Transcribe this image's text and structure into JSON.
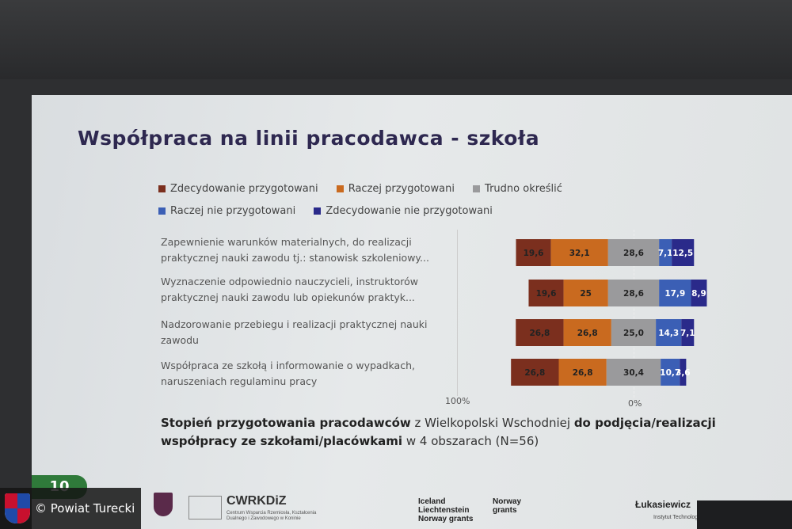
{
  "slide": {
    "title": "Współpraca na linii pracodawca - szkoła",
    "page_number": "10",
    "caption": {
      "part1": "Stopień przygotowania pracodawców",
      "part2": " z Wielkopolski Wschodniej ",
      "part3": "do podjęcia/realizacji współpracy ze szkołami/placówkami",
      "part4": " w 4 obszarach (N=56)"
    }
  },
  "chart_data": {
    "type": "bar",
    "orientation": "horizontal-diverging",
    "legend_position": "top",
    "series": [
      {
        "name": "Zdecydowanie przygotowani",
        "color": "#7b2f1e"
      },
      {
        "name": "Raczej przygotowani",
        "color": "#c96a1f"
      },
      {
        "name": "Trudno określić",
        "color": "#9a9a9c"
      },
      {
        "name": "Raczej nie przygotowani",
        "color": "#3b5fb5"
      },
      {
        "name": "Zdecydowanie nie przygotowani",
        "color": "#2a2a8a"
      }
    ],
    "categories": [
      "Zapewnienie warunków materialnych, do realizacji praktycznej nauki zawodu tj.: stanowisk szkoleniowy...",
      "Wyznaczenie odpowiednio nauczycieli, instruktorów praktycznej nauki zawodu lub opiekunów praktyk...",
      "Nadzorowanie przebiegu i realizacji praktycznej nauki zawodu",
      "Współpraca ze szkołą i informowanie o wypadkach, naruszeniach regulaminu pracy"
    ],
    "values": [
      [
        19.6,
        32.1,
        28.6,
        7.1,
        12.5
      ],
      [
        19.6,
        25,
        28.6,
        17.9,
        8.9
      ],
      [
        26.8,
        26.8,
        25.0,
        14.3,
        7.1
      ],
      [
        26.8,
        26.8,
        30.4,
        10.7,
        3.6
      ]
    ],
    "labels": [
      [
        "19,6",
        "32,1",
        "28,6",
        "7,1",
        "12,5"
      ],
      [
        "19,6",
        "25",
        "28,6",
        "17,9",
        "8,9"
      ],
      [
        "26,8",
        "26,8",
        "25,0",
        "14,3",
        "7,1"
      ],
      [
        "26,8",
        "26,8",
        "30,4",
        "10,7",
        "3,6"
      ]
    ],
    "x_ticks": [
      "100%",
      "0%"
    ]
  },
  "footer": {
    "org_name": "CWRKDiZ",
    "org_subtitle": "Centrum Wsparcia Rzemiosła, Kształcenia Dualnego i Zawodowego w Koninie",
    "grants_left": [
      "Iceland",
      "Liechtenstein",
      "Norway grants"
    ],
    "grants_right": [
      "Norway",
      "grants"
    ],
    "partner": "Łukasiewicz",
    "partner_sub": "Instytut Technologii"
  },
  "watermark": "© Powiat Turecki"
}
